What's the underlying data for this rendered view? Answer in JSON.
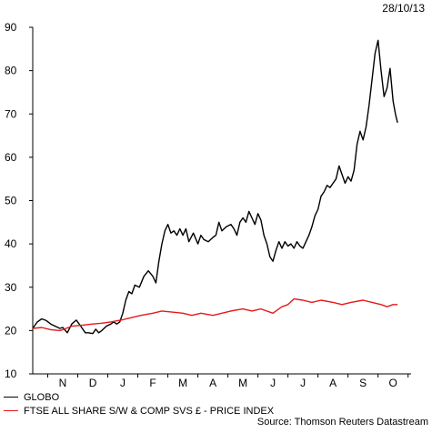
{
  "date_label": "28/10/13",
  "source": "Source: Thomson Reuters Datastream",
  "chart_data": {
    "type": "line",
    "title": "",
    "xlabel": "",
    "ylabel": "",
    "ylim": [
      10,
      90
    ],
    "yticks": [
      10,
      20,
      30,
      40,
      50,
      60,
      70,
      80,
      90
    ],
    "x_range": [
      0,
      12
    ],
    "month_labels": [
      {
        "label": "N",
        "x": 1.0
      },
      {
        "label": "D",
        "x": 2.0
      },
      {
        "label": "J",
        "x": 3.0
      },
      {
        "label": "F",
        "x": 4.0
      },
      {
        "label": "M",
        "x": 5.0
      },
      {
        "label": "A",
        "x": 6.0
      },
      {
        "label": "M",
        "x": 7.0
      },
      {
        "label": "J",
        "x": 8.0
      },
      {
        "label": "J",
        "x": 9.0
      },
      {
        "label": "A",
        "x": 10.0
      },
      {
        "label": "S",
        "x": 11.0
      },
      {
        "label": "O",
        "x": 12.0
      }
    ],
    "grid": false,
    "series": [
      {
        "name": "GLOBO",
        "color": "#000000",
        "points": [
          [
            0.0,
            20.5
          ],
          [
            0.15,
            22
          ],
          [
            0.3,
            22.7
          ],
          [
            0.45,
            22.3
          ],
          [
            0.6,
            21.5
          ],
          [
            0.75,
            21.0
          ],
          [
            0.9,
            20.5
          ],
          [
            1.0,
            20.7
          ],
          [
            1.15,
            19.5
          ],
          [
            1.3,
            21.5
          ],
          [
            1.45,
            22.4
          ],
          [
            1.6,
            21.0
          ],
          [
            1.75,
            19.5
          ],
          [
            1.85,
            19.5
          ],
          [
            2.0,
            19.3
          ],
          [
            2.1,
            20.3
          ],
          [
            2.2,
            19.5
          ],
          [
            2.3,
            20.0
          ],
          [
            2.45,
            21.0
          ],
          [
            2.6,
            21.5
          ],
          [
            2.7,
            22.0
          ],
          [
            2.8,
            21.5
          ],
          [
            2.9,
            22.0
          ],
          [
            3.0,
            24.0
          ],
          [
            3.1,
            27.0
          ],
          [
            3.2,
            29.0
          ],
          [
            3.3,
            28.5
          ],
          [
            3.4,
            30.5
          ],
          [
            3.55,
            30.0
          ],
          [
            3.7,
            32.5
          ],
          [
            3.85,
            33.8
          ],
          [
            4.0,
            32.5
          ],
          [
            4.1,
            31.0
          ],
          [
            4.2,
            36.0
          ],
          [
            4.3,
            40.0
          ],
          [
            4.4,
            43.0
          ],
          [
            4.5,
            44.5
          ],
          [
            4.6,
            42.5
          ],
          [
            4.7,
            43.0
          ],
          [
            4.8,
            42.0
          ],
          [
            4.9,
            43.5
          ],
          [
            5.0,
            42.0
          ],
          [
            5.1,
            43.5
          ],
          [
            5.2,
            40.5
          ],
          [
            5.35,
            42.5
          ],
          [
            5.5,
            40.0
          ],
          [
            5.6,
            42.0
          ],
          [
            5.7,
            41.0
          ],
          [
            5.85,
            40.5
          ],
          [
            6.0,
            41.5
          ],
          [
            6.1,
            42.0
          ],
          [
            6.2,
            45.0
          ],
          [
            6.3,
            43.0
          ],
          [
            6.45,
            44.0
          ],
          [
            6.6,
            44.5
          ],
          [
            6.7,
            43.5
          ],
          [
            6.8,
            42.0
          ],
          [
            6.9,
            45.0
          ],
          [
            7.0,
            46.0
          ],
          [
            7.1,
            45.0
          ],
          [
            7.2,
            47.5
          ],
          [
            7.3,
            46.0
          ],
          [
            7.4,
            44.5
          ],
          [
            7.5,
            47.0
          ],
          [
            7.6,
            45.5
          ],
          [
            7.7,
            42.0
          ],
          [
            7.8,
            40.0
          ],
          [
            7.9,
            37.0
          ],
          [
            8.0,
            36.0
          ],
          [
            8.1,
            38.5
          ],
          [
            8.2,
            40.5
          ],
          [
            8.3,
            39.0
          ],
          [
            8.4,
            40.5
          ],
          [
            8.5,
            39.5
          ],
          [
            8.6,
            40.0
          ],
          [
            8.7,
            39.0
          ],
          [
            8.8,
            40.5
          ],
          [
            8.9,
            39.5
          ],
          [
            9.0,
            39.0
          ],
          [
            9.1,
            40.5
          ],
          [
            9.2,
            42.0
          ],
          [
            9.3,
            44.0
          ],
          [
            9.4,
            46.5
          ],
          [
            9.5,
            48.0
          ],
          [
            9.6,
            51.0
          ],
          [
            9.7,
            52.0
          ],
          [
            9.8,
            53.5
          ],
          [
            9.9,
            53.0
          ],
          [
            10.0,
            54.0
          ],
          [
            10.1,
            55.0
          ],
          [
            10.2,
            58.0
          ],
          [
            10.3,
            56.0
          ],
          [
            10.4,
            54.0
          ],
          [
            10.5,
            55.5
          ],
          [
            10.6,
            54.5
          ],
          [
            10.7,
            57.0
          ],
          [
            10.8,
            63.0
          ],
          [
            10.9,
            66.0
          ],
          [
            11.0,
            64.0
          ],
          [
            11.1,
            67.0
          ],
          [
            11.2,
            72.0
          ],
          [
            11.3,
            78.0
          ],
          [
            11.4,
            84.0
          ],
          [
            11.5,
            87.0
          ],
          [
            11.6,
            80.0
          ],
          [
            11.7,
            74.0
          ],
          [
            11.8,
            76.0
          ],
          [
            11.9,
            80.5
          ],
          [
            12.0,
            73.0
          ],
          [
            12.08,
            70.0
          ],
          [
            12.15,
            68.0
          ]
        ]
      },
      {
        "name": "FTSE ALL SHARE S/W & COMP SVS £ - PRICE INDEX",
        "color": "#e41a1a",
        "points": [
          [
            0.0,
            20.5
          ],
          [
            0.3,
            20.7
          ],
          [
            0.6,
            20.2
          ],
          [
            0.9,
            20.0
          ],
          [
            1.0,
            20.2
          ],
          [
            1.3,
            21.0
          ],
          [
            1.6,
            21.2
          ],
          [
            2.0,
            21.5
          ],
          [
            2.3,
            21.7
          ],
          [
            2.6,
            22.0
          ],
          [
            3.0,
            22.5
          ],
          [
            3.3,
            23.0
          ],
          [
            3.6,
            23.5
          ],
          [
            4.0,
            24.0
          ],
          [
            4.3,
            24.5
          ],
          [
            4.6,
            24.3
          ],
          [
            5.0,
            24.0
          ],
          [
            5.3,
            23.5
          ],
          [
            5.6,
            24.0
          ],
          [
            6.0,
            23.5
          ],
          [
            6.3,
            24.0
          ],
          [
            6.6,
            24.5
          ],
          [
            7.0,
            25.0
          ],
          [
            7.3,
            24.5
          ],
          [
            7.6,
            25.0
          ],
          [
            8.0,
            24.0
          ],
          [
            8.3,
            25.5
          ],
          [
            8.5,
            26.0
          ],
          [
            8.7,
            27.3
          ],
          [
            9.0,
            27.0
          ],
          [
            9.3,
            26.5
          ],
          [
            9.6,
            27.0
          ],
          [
            10.0,
            26.5
          ],
          [
            10.3,
            26.0
          ],
          [
            10.6,
            26.5
          ],
          [
            11.0,
            27.0
          ],
          [
            11.3,
            26.5
          ],
          [
            11.6,
            26.0
          ],
          [
            11.8,
            25.5
          ],
          [
            12.0,
            26.0
          ],
          [
            12.15,
            26.0
          ]
        ]
      }
    ]
  }
}
